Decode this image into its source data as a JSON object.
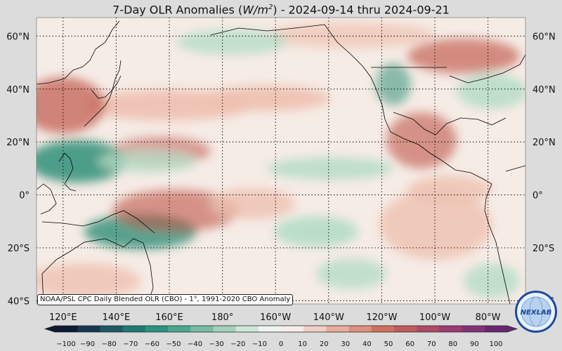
{
  "title": {
    "prefix": "7-Day OLR Anomalies (",
    "unit_base": "W/m",
    "unit_exp": "2",
    "suffix": ") - 2024-09-14 thru 2024-09-21"
  },
  "map": {
    "lat_labels": [
      "60°N",
      "40°N",
      "20°N",
      "0°",
      "20°S",
      "40°S"
    ],
    "lat_values": [
      60,
      40,
      20,
      0,
      -20,
      -40
    ],
    "lon_labels": [
      "120°E",
      "140°E",
      "160°E",
      "180°",
      "160°W",
      "140°W",
      "120°W",
      "100°W",
      "80°W"
    ],
    "lon_values": [
      120,
      140,
      160,
      180,
      -160,
      -140,
      -120,
      -100,
      -80
    ],
    "source_note": "NOAA/PSL CPC Daily Blended OLR (CBO) - 1°, 1991-2020 CBO Anomaly",
    "colors": {
      "positive_strong": "#c0574a",
      "positive_weak": "#eec0b0",
      "negative_strong": "#2e8f78",
      "negative_weak": "#b5dcc6",
      "ocean_base": "#f6ece6"
    }
  },
  "colorbar": {
    "ticks": [
      "−100",
      "−90",
      "−80",
      "−70",
      "−60",
      "−50",
      "−40",
      "−30",
      "−20",
      "−10",
      "0",
      "10",
      "20",
      "30",
      "40",
      "50",
      "60",
      "70",
      "80",
      "90",
      "100"
    ],
    "colors": [
      "#0e1b33",
      "#173553",
      "#1c5a66",
      "#1f7a73",
      "#2a9480",
      "#4aa88f",
      "#76bca3",
      "#a3d1bb",
      "#cde6d8",
      "#eef5f0",
      "#f7ece8",
      "#f0cfc4",
      "#e8ad9c",
      "#de8f7d",
      "#d1705f",
      "#c25a5b",
      "#b04867",
      "#9c3a72",
      "#85307a",
      "#6a2572"
    ]
  },
  "logo": {
    "text": "NEXLAB"
  }
}
